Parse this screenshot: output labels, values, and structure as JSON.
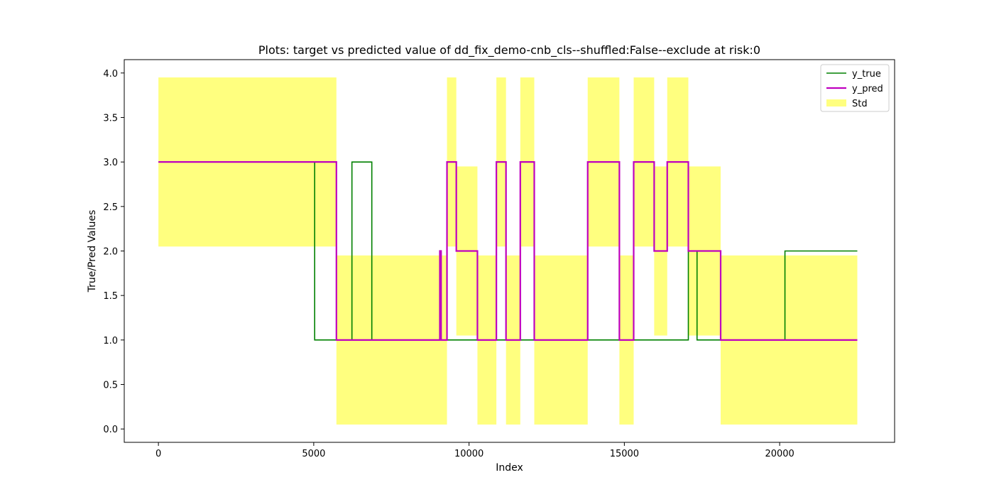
{
  "chart_data": {
    "type": "line",
    "title": "Plots: target vs predicted value of dd_fix_demo-cnb_cls--shuffled:False--exclude at risk:0",
    "xlabel": "Index",
    "ylabel": "True/Pred Values",
    "xlim": [
      -1100,
      23700
    ],
    "ylim": [
      -0.15,
      4.15
    ],
    "x_ticks": [
      0,
      5000,
      10000,
      15000,
      20000
    ],
    "x_tick_labels": [
      "0",
      "5000",
      "10000",
      "15000",
      "20000"
    ],
    "y_ticks": [
      0.0,
      0.5,
      1.0,
      1.5,
      2.0,
      2.5,
      3.0,
      3.5,
      4.0
    ],
    "y_tick_labels": [
      "0.0",
      "0.5",
      "1.0",
      "1.5",
      "2.0",
      "2.5",
      "3.0",
      "3.5",
      "4.0"
    ],
    "grid": false,
    "legend_position": "top-right",
    "legend": [
      "y_true",
      "y_pred",
      "Std"
    ],
    "series": [
      {
        "name": "y_true",
        "color": "#008000",
        "steps": [
          [
            0,
            3
          ],
          [
            5030,
            1
          ],
          [
            6230,
            3
          ],
          [
            6870,
            1
          ],
          [
            17060,
            2
          ],
          [
            17340,
            1
          ],
          [
            20170,
            2
          ],
          [
            22500,
            2
          ]
        ]
      },
      {
        "name": "y_pred",
        "color": "#bf00bf",
        "steps": [
          [
            0,
            3
          ],
          [
            5730,
            1
          ],
          [
            9060,
            2
          ],
          [
            9100,
            1
          ],
          [
            9290,
            3
          ],
          [
            9590,
            2
          ],
          [
            10270,
            1
          ],
          [
            10880,
            3
          ],
          [
            11190,
            1
          ],
          [
            11650,
            3
          ],
          [
            12100,
            1
          ],
          [
            13820,
            3
          ],
          [
            14840,
            1
          ],
          [
            15300,
            3
          ],
          [
            15960,
            2
          ],
          [
            16380,
            3
          ],
          [
            17060,
            2
          ],
          [
            18100,
            1
          ],
          [
            22500,
            1
          ]
        ]
      },
      {
        "name": "Std",
        "color": "#ffff00",
        "opacity": 0.5,
        "bands": [
          [
            0,
            5730,
            2.05,
            3.95
          ],
          [
            5730,
            9290,
            0.05,
            1.95
          ],
          [
            9290,
            9590,
            2.05,
            3.95
          ],
          [
            9590,
            10270,
            1.05,
            2.95
          ],
          [
            10270,
            10880,
            0.05,
            1.95
          ],
          [
            10880,
            11190,
            2.05,
            3.95
          ],
          [
            11190,
            11650,
            0.05,
            1.95
          ],
          [
            11650,
            12100,
            2.05,
            3.95
          ],
          [
            12100,
            13820,
            0.05,
            1.95
          ],
          [
            13820,
            14840,
            2.05,
            3.95
          ],
          [
            14840,
            15300,
            0.05,
            1.95
          ],
          [
            15300,
            15960,
            2.05,
            3.95
          ],
          [
            15960,
            16380,
            1.05,
            2.95
          ],
          [
            16380,
            17060,
            2.05,
            3.95
          ],
          [
            17060,
            18100,
            1.05,
            2.95
          ],
          [
            18100,
            22500,
            0.05,
            1.95
          ]
        ]
      }
    ]
  }
}
